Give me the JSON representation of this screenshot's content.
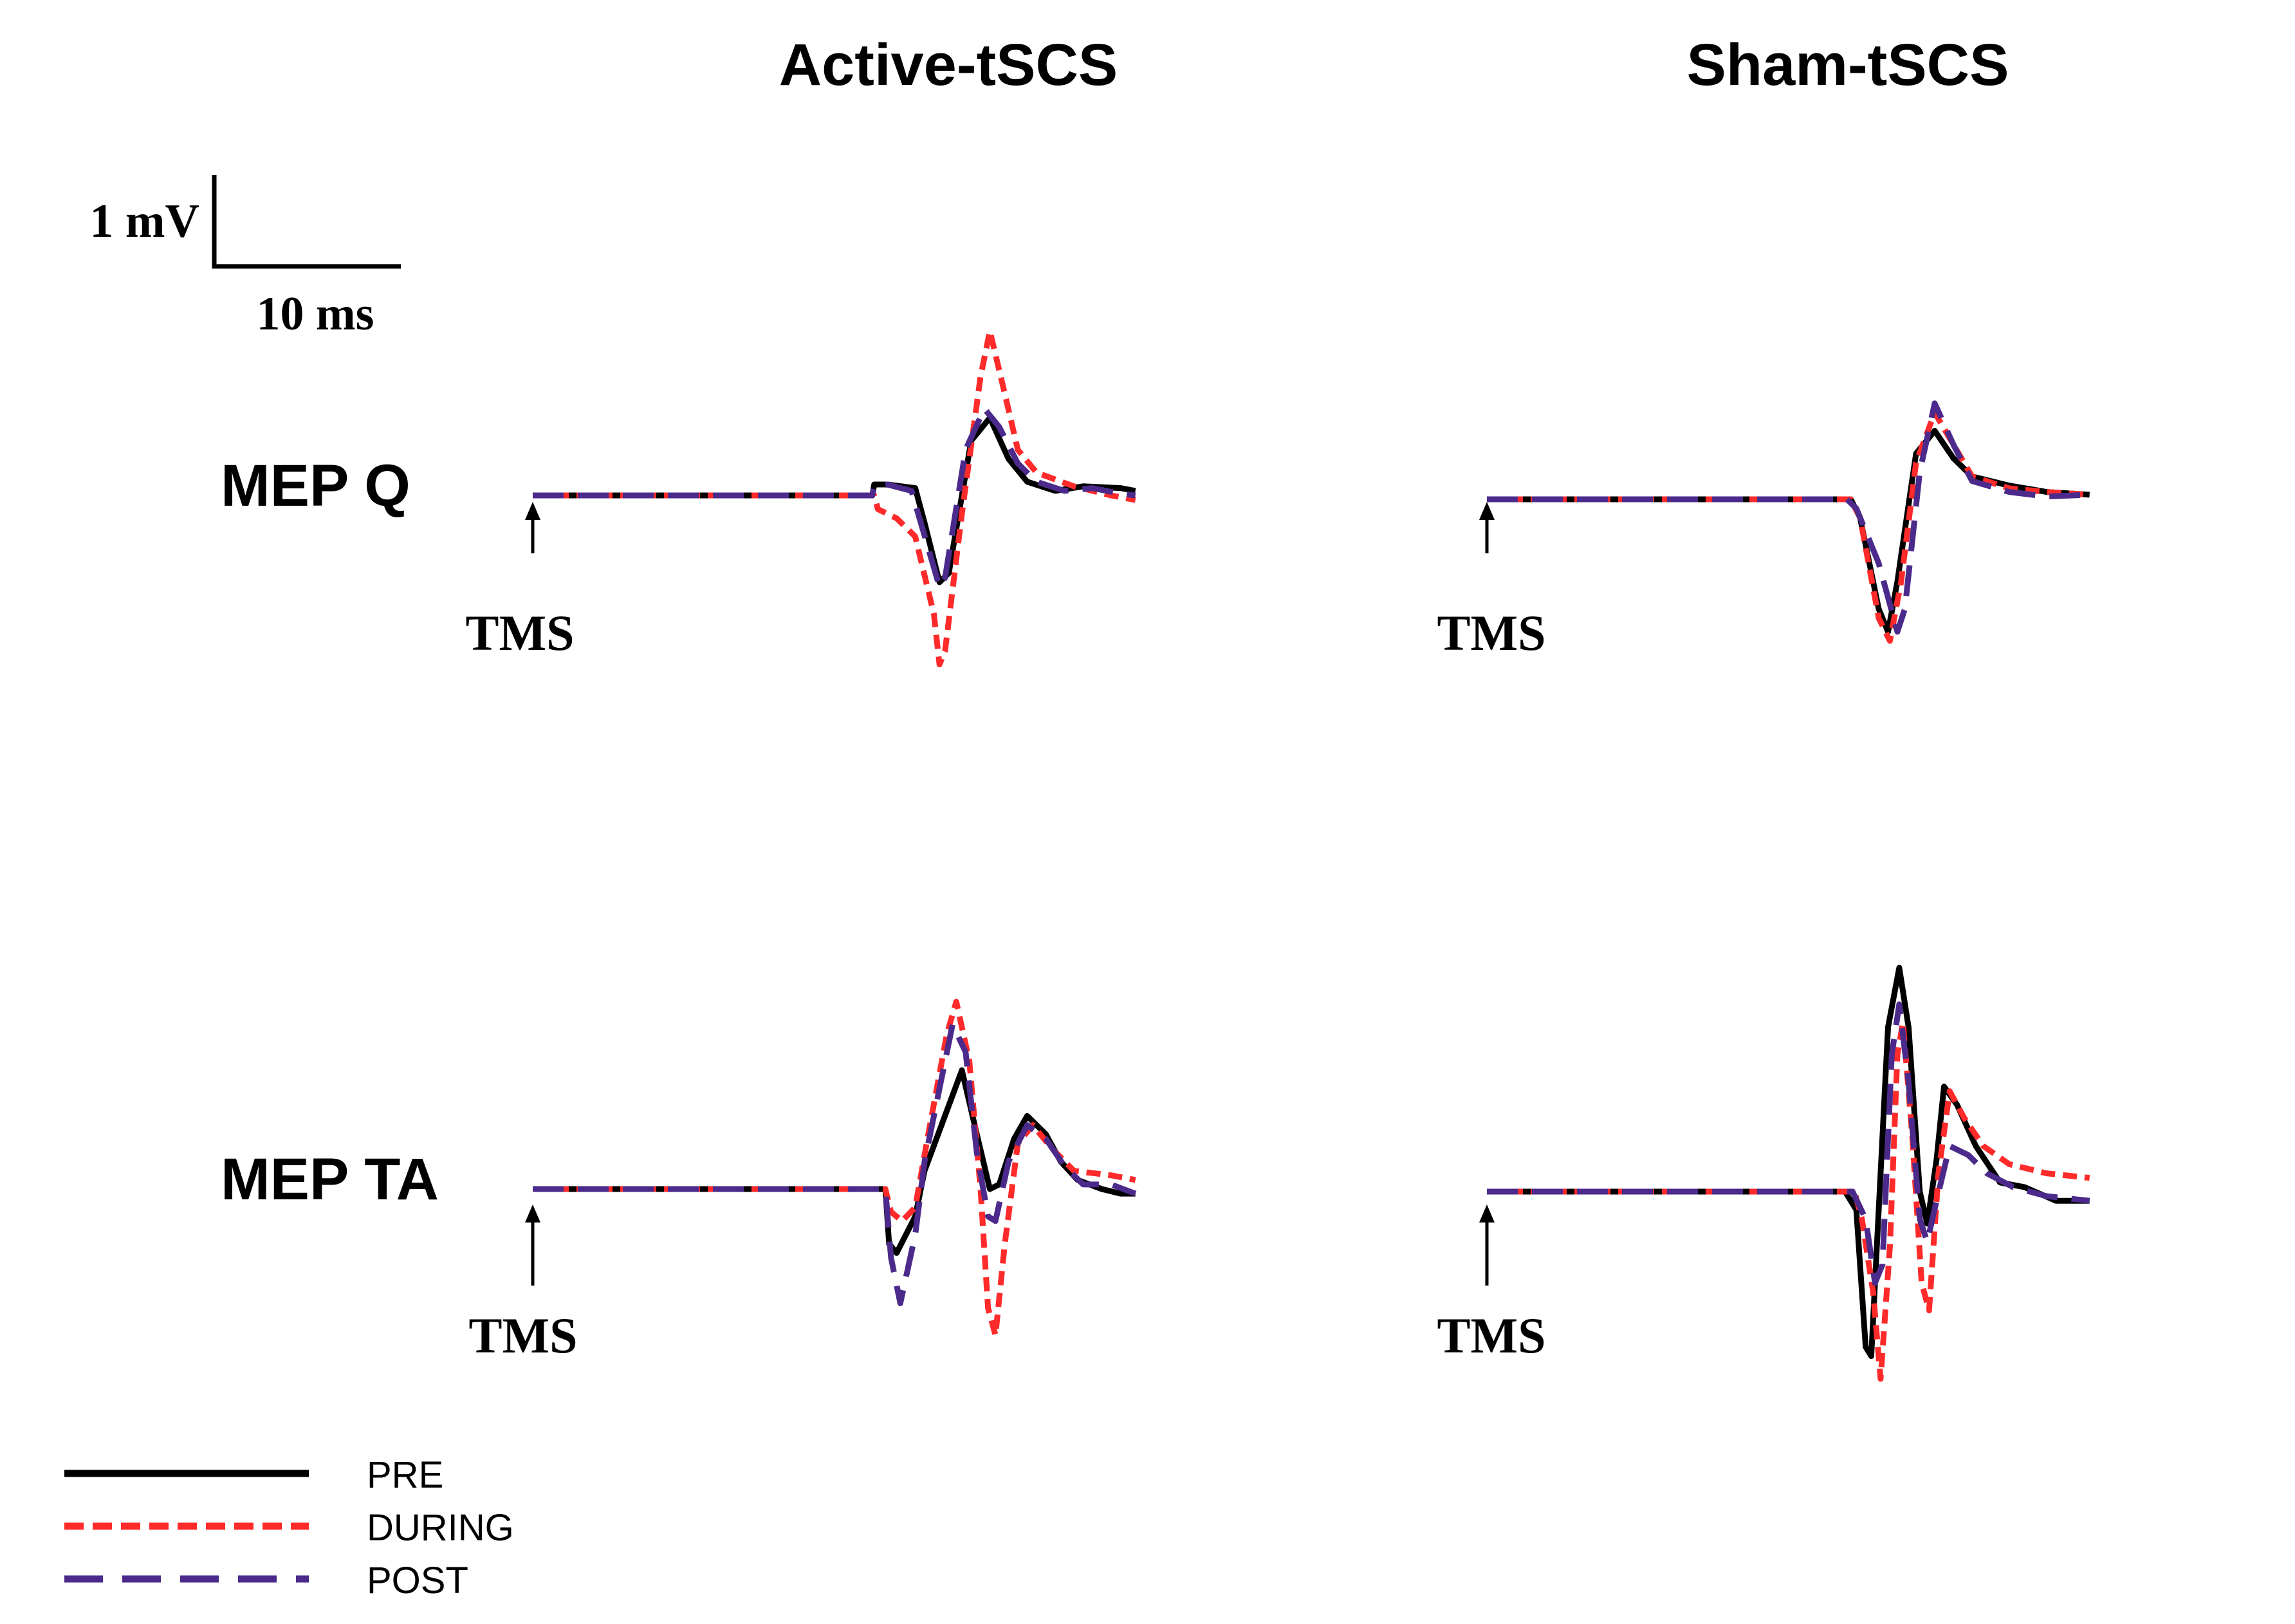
{
  "columns": [
    "Active-tSCS",
    "Sham-tSCS"
  ],
  "rows": [
    "MEP Q",
    "MEP TA"
  ],
  "stimulus_label": "TMS",
  "scale_bar": {
    "amplitude_label": "1 mV",
    "time_label": "10 ms"
  },
  "legend": [
    {
      "label": "PRE",
      "color": "#000000",
      "style": "solid"
    },
    {
      "label": "DURING",
      "color": "#ff2a2a",
      "style": "short-dash"
    },
    {
      "label": "POST",
      "color": "#4b2a8c",
      "style": "long-dash"
    }
  ],
  "chart_data": {
    "type": "line",
    "x_unit": "ms",
    "y_unit": "mV",
    "panels": [
      {
        "column": "Active-tSCS",
        "row": "MEP Q",
        "series": [
          {
            "name": "PRE",
            "points": [
              [
                0,
                0
              ],
              [
                18.2,
                0
              ],
              [
                18.3,
                0.12
              ],
              [
                19,
                0.12
              ],
              [
                20.5,
                0.08
              ],
              [
                21,
                -0.3
              ],
              [
                21.8,
                -0.95
              ],
              [
                22.3,
                -0.85
              ],
              [
                23.5,
                0.6
              ],
              [
                24.5,
                0.85
              ],
              [
                25.5,
                0.4
              ],
              [
                26.5,
                0.15
              ],
              [
                28,
                0.05
              ],
              [
                29.5,
                0.1
              ],
              [
                31.5,
                0.08
              ],
              [
                32.3,
                0.05
              ]
            ]
          },
          {
            "name": "DURING",
            "points": [
              [
                0,
                0
              ],
              [
                18.3,
                0
              ],
              [
                18.5,
                -0.15
              ],
              [
                19.5,
                -0.25
              ],
              [
                20.5,
                -0.45
              ],
              [
                21.5,
                -1.3
              ],
              [
                21.8,
                -1.85
              ],
              [
                22.1,
                -1.7
              ],
              [
                23,
                -0.2
              ],
              [
                24,
                1.3
              ],
              [
                24.5,
                1.8
              ],
              [
                25.2,
                1.2
              ],
              [
                26,
                0.5
              ],
              [
                27,
                0.25
              ],
              [
                29,
                0.1
              ],
              [
                31,
                0
              ],
              [
                32.3,
                -0.05
              ]
            ]
          },
          {
            "name": "POST",
            "points": [
              [
                0,
                0
              ],
              [
                18.2,
                0
              ],
              [
                18.3,
                0.1
              ],
              [
                19,
                0.12
              ],
              [
                20.3,
                0.05
              ],
              [
                20.8,
                -0.3
              ],
              [
                21.8,
                -1.0
              ],
              [
                22.1,
                -0.9
              ],
              [
                23.2,
                0.5
              ],
              [
                24.2,
                0.95
              ],
              [
                25,
                0.75
              ],
              [
                26,
                0.35
              ],
              [
                27,
                0.15
              ],
              [
                28.5,
                0.05
              ],
              [
                30,
                0.08
              ],
              [
                31.5,
                0.02
              ],
              [
                32.3,
                0
              ]
            ]
          }
        ]
      },
      {
        "column": "Sham-tSCS",
        "row": "MEP Q",
        "series": [
          {
            "name": "PRE",
            "points": [
              [
                0,
                0
              ],
              [
                19.5,
                0
              ],
              [
                20,
                -0.2
              ],
              [
                21,
                -1.2
              ],
              [
                21.5,
                -1.45
              ],
              [
                22,
                -0.9
              ],
              [
                23,
                0.5
              ],
              [
                24,
                0.75
              ],
              [
                25,
                0.45
              ],
              [
                26,
                0.25
              ],
              [
                28,
                0.15
              ],
              [
                30,
                0.08
              ],
              [
                32.3,
                0.05
              ]
            ]
          },
          {
            "name": "DURING",
            "points": [
              [
                0,
                0
              ],
              [
                19.5,
                0
              ],
              [
                20,
                -0.2
              ],
              [
                21,
                -1.3
              ],
              [
                21.6,
                -1.55
              ],
              [
                22.2,
                -0.9
              ],
              [
                23,
                0.4
              ],
              [
                24,
                0.95
              ],
              [
                25,
                0.6
              ],
              [
                26,
                0.25
              ],
              [
                28,
                0.12
              ],
              [
                30,
                0.08
              ],
              [
                32.3,
                0.05
              ]
            ]
          },
          {
            "name": "POST",
            "points": [
              [
                0,
                0
              ],
              [
                19.3,
                0
              ],
              [
                19.8,
                -0.1
              ],
              [
                21,
                -0.7
              ],
              [
                22,
                -1.45
              ],
              [
                22.4,
                -1.2
              ],
              [
                23.2,
                0.3
              ],
              [
                24,
                1.05
              ],
              [
                25,
                0.6
              ],
              [
                26,
                0.2
              ],
              [
                28,
                0.08
              ],
              [
                30,
                0.03
              ],
              [
                32.3,
                0.05
              ]
            ]
          }
        ]
      },
      {
        "column": "Active-tSCS",
        "row": "MEP TA",
        "series": [
          {
            "name": "PRE",
            "points": [
              [
                0,
                0
              ],
              [
                18.9,
                0
              ],
              [
                19.1,
                -0.6
              ],
              [
                19.5,
                -0.7
              ],
              [
                20.5,
                -0.3
              ],
              [
                21,
                0.2
              ],
              [
                22,
                0.75
              ],
              [
                23,
                1.3
              ],
              [
                23.8,
                0.6
              ],
              [
                24.5,
                0.0
              ],
              [
                25,
                0.05
              ],
              [
                25.8,
                0.55
              ],
              [
                26.5,
                0.8
              ],
              [
                27.5,
                0.6
              ],
              [
                28.3,
                0.3
              ],
              [
                29.2,
                0.1
              ],
              [
                30.5,
                0.0
              ],
              [
                31.5,
                -0.05
              ],
              [
                32.3,
                -0.05
              ]
            ]
          },
          {
            "name": "DURING",
            "points": [
              [
                0,
                0
              ],
              [
                18.9,
                0
              ],
              [
                19.2,
                -0.25
              ],
              [
                19.8,
                -0.35
              ],
              [
                20.5,
                -0.2
              ],
              [
                21.2,
                0.6
              ],
              [
                22.2,
                1.7
              ],
              [
                22.7,
                2.05
              ],
              [
                23.4,
                1.4
              ],
              [
                24,
                0
              ],
              [
                24.4,
                -1.3
              ],
              [
                24.8,
                -1.6
              ],
              [
                25.3,
                -0.6
              ],
              [
                26,
                0.5
              ],
              [
                26.8,
                0.7
              ],
              [
                27.8,
                0.45
              ],
              [
                29,
                0.2
              ],
              [
                31,
                0.15
              ],
              [
                32.3,
                0.1
              ]
            ]
          },
          {
            "name": "POST",
            "points": [
              [
                0,
                0
              ],
              [
                18.9,
                0
              ],
              [
                19.2,
                -0.75
              ],
              [
                19.7,
                -1.25
              ],
              [
                20.5,
                -0.5
              ],
              [
                21,
                0.3
              ],
              [
                21.8,
                1.1
              ],
              [
                22.5,
                1.8
              ],
              [
                23.2,
                1.5
              ],
              [
                23.8,
                0.4
              ],
              [
                24.4,
                -0.3
              ],
              [
                24.8,
                -0.35
              ],
              [
                25.5,
                0.3
              ],
              [
                26.5,
                0.7
              ],
              [
                27.5,
                0.55
              ],
              [
                28.5,
                0.25
              ],
              [
                29.5,
                0.05
              ],
              [
                31,
                0.05
              ],
              [
                32.3,
                -0.05
              ]
            ]
          }
        ]
      },
      {
        "column": "Sham-tSCS",
        "row": "MEP TA",
        "series": [
          {
            "name": "PRE",
            "points": [
              [
                0,
                0
              ],
              [
                19.2,
                0
              ],
              [
                19.8,
                -0.2
              ],
              [
                20.3,
                -1.7
              ],
              [
                20.6,
                -1.8
              ],
              [
                21,
                -0.2
              ],
              [
                21.5,
                1.8
              ],
              [
                22.1,
                2.45
              ],
              [
                22.6,
                1.8
              ],
              [
                23.2,
                0
              ],
              [
                23.6,
                -0.35
              ],
              [
                24.1,
                0.35
              ],
              [
                24.5,
                1.15
              ],
              [
                25.2,
                0.95
              ],
              [
                26.2,
                0.5
              ],
              [
                27.5,
                0.1
              ],
              [
                28.8,
                0.05
              ],
              [
                30.5,
                -0.1
              ],
              [
                32.3,
                -0.1
              ]
            ]
          },
          {
            "name": "DURING",
            "points": [
              [
                0,
                0
              ],
              [
                19.7,
                0
              ],
              [
                20.1,
                -0.3
              ],
              [
                20.7,
                -1.1
              ],
              [
                21.1,
                -2.05
              ],
              [
                21.6,
                -0.6
              ],
              [
                22,
                1.5
              ],
              [
                22.3,
                1.85
              ],
              [
                22.8,
                0.6
              ],
              [
                23.3,
                -1.0
              ],
              [
                23.7,
                -1.3
              ],
              [
                24.2,
                0.2
              ],
              [
                24.8,
                1.1
              ],
              [
                25.6,
                0.8
              ],
              [
                26.6,
                0.5
              ],
              [
                28,
                0.3
              ],
              [
                30,
                0.2
              ],
              [
                32.3,
                0.15
              ]
            ]
          },
          {
            "name": "POST",
            "points": [
              [
                0,
                0
              ],
              [
                19.6,
                0
              ],
              [
                20.3,
                -0.3
              ],
              [
                20.8,
                -1.0
              ],
              [
                21.2,
                -0.8
              ],
              [
                21.7,
                1.5
              ],
              [
                22.1,
                2.05
              ],
              [
                22.6,
                1.2
              ],
              [
                23.2,
                -0.3
              ],
              [
                23.6,
                -0.55
              ],
              [
                24.1,
                -0.1
              ],
              [
                24.8,
                0.5
              ],
              [
                25.8,
                0.4
              ],
              [
                26.8,
                0.2
              ],
              [
                28.2,
                0.05
              ],
              [
                30,
                -0.05
              ],
              [
                32.3,
                -0.1
              ]
            ]
          }
        ]
      }
    ]
  }
}
